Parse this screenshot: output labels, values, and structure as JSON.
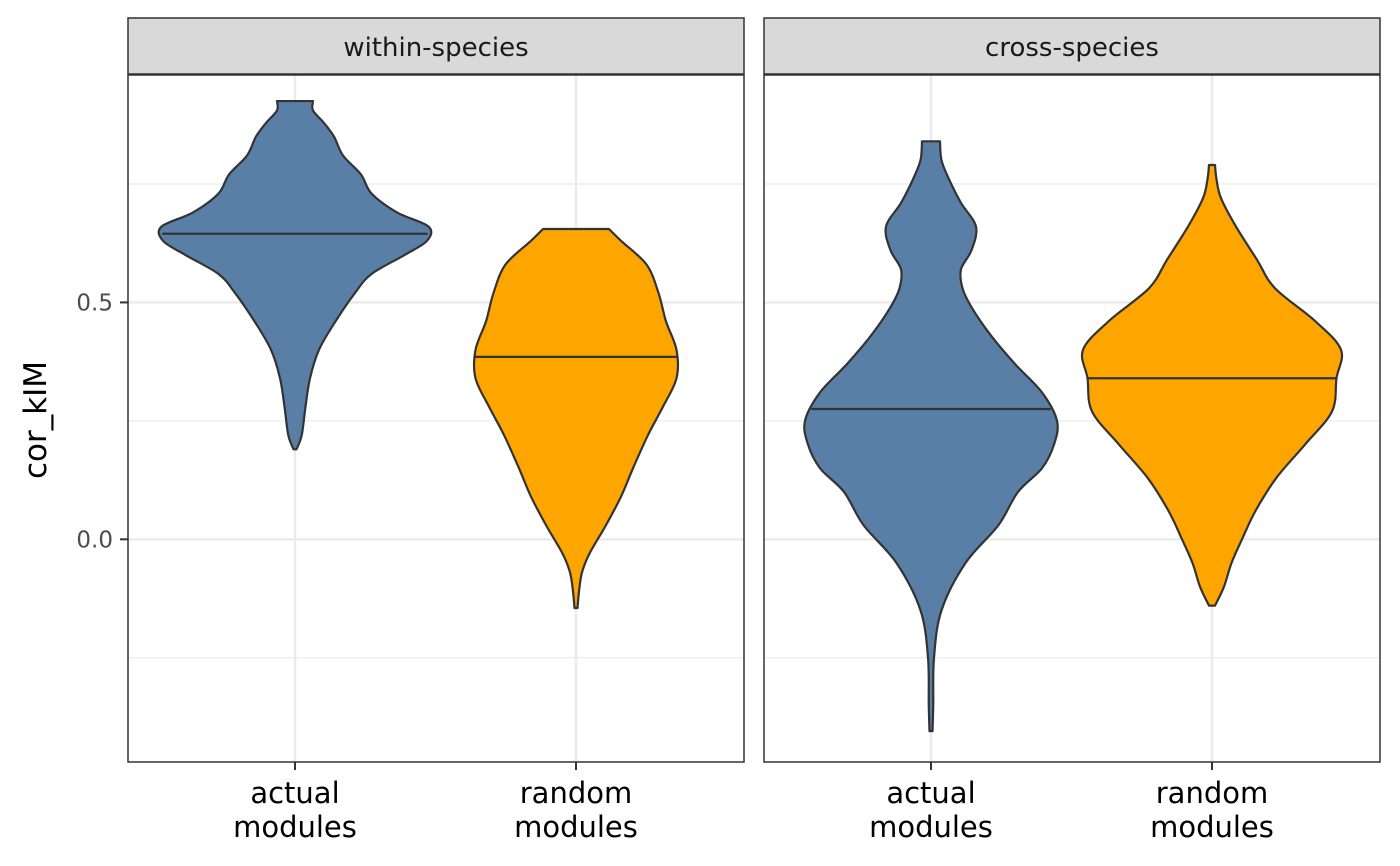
{
  "chart_data": {
    "type": "violin",
    "ylabel": "cor_kIM",
    "xlabel": "",
    "ylim": [
      -0.47,
      0.98
    ],
    "y_ticks": [
      {
        "value": 0.0,
        "label": "0.0"
      },
      {
        "value": 0.5,
        "label": "0.5"
      }
    ],
    "y_minor_gridlines": [
      -0.25,
      0.25,
      0.75
    ],
    "grid": true,
    "legend": "none",
    "categories": [
      {
        "label_line1": "actual",
        "label_line2": "modules"
      },
      {
        "label_line1": "random",
        "label_line2": "modules"
      }
    ],
    "colors": {
      "actual": "#5a7fa6",
      "random": "#ffa500",
      "outline": "#333333",
      "strip_bg": "#d9d9d9",
      "grid": "#ebebeb",
      "panel_border": "#333333"
    },
    "panels": [
      {
        "title": "within-species",
        "violins": [
          {
            "category": "actual modules",
            "median": 0.645,
            "min": 0.19,
            "max": 0.925,
            "profile": [
              [
                0.19,
                0.01
              ],
              [
                0.22,
                0.045
              ],
              [
                0.28,
                0.07
              ],
              [
                0.34,
                0.1
              ],
              [
                0.4,
                0.16
              ],
              [
                0.46,
                0.27
              ],
              [
                0.52,
                0.4
              ],
              [
                0.56,
                0.51
              ],
              [
                0.6,
                0.73
              ],
              [
                0.63,
                0.88
              ],
              [
                0.66,
                0.89
              ],
              [
                0.69,
                0.68
              ],
              [
                0.73,
                0.51
              ],
              [
                0.77,
                0.44
              ],
              [
                0.81,
                0.32
              ],
              [
                0.85,
                0.26
              ],
              [
                0.88,
                0.19
              ],
              [
                0.905,
                0.12
              ],
              [
                0.925,
                0.12
              ]
            ]
          },
          {
            "category": "random modules",
            "median": 0.385,
            "min": -0.145,
            "max": 0.655,
            "profile": [
              [
                -0.145,
                0.01
              ],
              [
                -0.11,
                0.02
              ],
              [
                -0.07,
                0.04
              ],
              [
                -0.03,
                0.09
              ],
              [
                0.03,
                0.2
              ],
              [
                0.09,
                0.3
              ],
              [
                0.15,
                0.38
              ],
              [
                0.22,
                0.48
              ],
              [
                0.28,
                0.58
              ],
              [
                0.34,
                0.67
              ],
              [
                0.4,
                0.67
              ],
              [
                0.46,
                0.6
              ],
              [
                0.52,
                0.55
              ],
              [
                0.58,
                0.47
              ],
              [
                0.63,
                0.3
              ],
              [
                0.655,
                0.22
              ]
            ]
          }
        ]
      },
      {
        "title": "cross-species",
        "violins": [
          {
            "category": "actual modules",
            "median": 0.275,
            "min": -0.405,
            "max": 0.84,
            "profile": [
              [
                -0.405,
                0.01
              ],
              [
                -0.35,
                0.015
              ],
              [
                -0.25,
                0.02
              ],
              [
                -0.15,
                0.07
              ],
              [
                -0.05,
                0.23
              ],
              [
                0.03,
                0.45
              ],
              [
                0.1,
                0.58
              ],
              [
                0.15,
                0.74
              ],
              [
                0.2,
                0.82
              ],
              [
                0.25,
                0.84
              ],
              [
                0.31,
                0.74
              ],
              [
                0.37,
                0.56
              ],
              [
                0.43,
                0.4
              ],
              [
                0.49,
                0.27
              ],
              [
                0.53,
                0.21
              ],
              [
                0.57,
                0.2
              ],
              [
                0.61,
                0.27
              ],
              [
                0.66,
                0.3
              ],
              [
                0.71,
                0.2
              ],
              [
                0.76,
                0.12
              ],
              [
                0.8,
                0.07
              ],
              [
                0.84,
                0.06
              ]
            ]
          },
          {
            "category": "random modules",
            "median": 0.34,
            "min": -0.14,
            "max": 0.79,
            "profile": [
              [
                -0.14,
                0.02
              ],
              [
                -0.1,
                0.08
              ],
              [
                -0.05,
                0.13
              ],
              [
                0.0,
                0.2
              ],
              [
                0.06,
                0.29
              ],
              [
                0.13,
                0.43
              ],
              [
                0.2,
                0.62
              ],
              [
                0.27,
                0.8
              ],
              [
                0.34,
                0.83
              ],
              [
                0.4,
                0.86
              ],
              [
                0.46,
                0.69
              ],
              [
                0.53,
                0.42
              ],
              [
                0.59,
                0.3
              ],
              [
                0.66,
                0.16
              ],
              [
                0.72,
                0.06
              ],
              [
                0.76,
                0.03
              ],
              [
                0.79,
                0.02
              ]
            ]
          }
        ]
      }
    ]
  }
}
